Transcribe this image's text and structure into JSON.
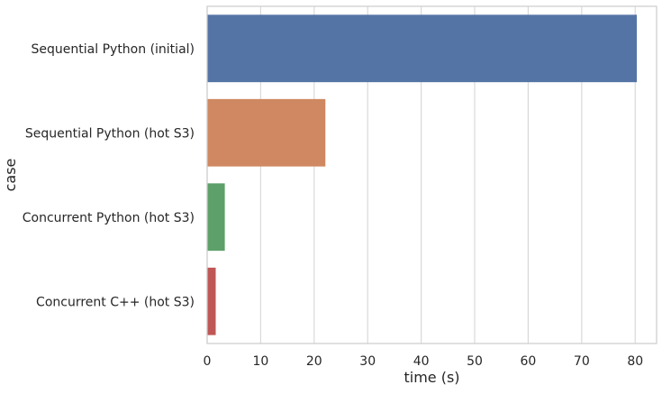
{
  "chart_data": {
    "type": "bar",
    "orientation": "horizontal",
    "categories": [
      "Sequential Python (initial)",
      "Sequential Python (hot S3)",
      "Concurrent Python (hot S3)",
      "Concurrent C++ (hot S3)"
    ],
    "values": [
      80.3,
      22.1,
      3.3,
      1.6
    ],
    "colors": [
      "#5574a6",
      "#cf8861",
      "#5da06a",
      "#bf5756"
    ],
    "title": "",
    "xlabel": "time (s)",
    "ylabel": "case",
    "xlim": [
      0,
      84
    ],
    "xticks": [
      0,
      10,
      20,
      30,
      40,
      50,
      60,
      70,
      80
    ],
    "grid": "vertical"
  }
}
